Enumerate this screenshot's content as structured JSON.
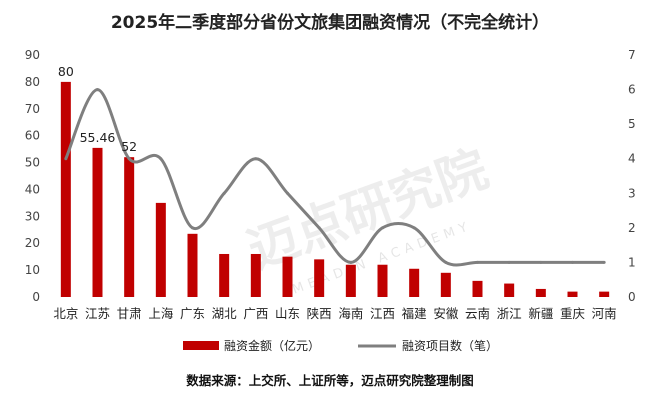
{
  "chart_data": {
    "type": "bar",
    "title": "2025年二季度部分省份文旅集团融资情况（不完全统计）",
    "categories": [
      "北京",
      "江苏",
      "甘肃",
      "上海",
      "广东",
      "湖北",
      "广西",
      "山东",
      "陕西",
      "海南",
      "江西",
      "福建",
      "安徽",
      "云南",
      "浙江",
      "新疆",
      "重庆",
      "河南"
    ],
    "series": [
      {
        "name": "融资金额（亿元）",
        "type": "bar",
        "axis": "left",
        "color": "#c00000",
        "values": [
          80,
          55.46,
          52,
          35,
          23.5,
          16,
          16,
          15,
          14,
          12,
          12,
          10.5,
          9,
          6,
          5,
          3,
          2,
          2
        ]
      },
      {
        "name": "融资项目数（笔）",
        "type": "line",
        "axis": "right",
        "color": "#7f7f7f",
        "values": [
          4,
          6,
          4,
          4,
          2,
          3,
          4,
          3,
          2,
          1,
          2,
          2,
          1,
          1,
          1,
          1,
          1,
          1
        ]
      }
    ],
    "data_labels": [
      {
        "index": 0,
        "text": "80"
      },
      {
        "index": 1,
        "text": "55.46"
      },
      {
        "index": 2,
        "text": "52"
      }
    ],
    "y_left": {
      "min": 0,
      "max": 90,
      "step": 10
    },
    "y_right": {
      "min": 0,
      "max": 7,
      "step": 1
    },
    "legend_position": "bottom",
    "grid": false
  },
  "watermark": {
    "cn": "迈点研究院",
    "en": "MEADIN ACADEMY"
  },
  "source": "数据来源：上交所、上证所等，迈点研究院整理制图"
}
